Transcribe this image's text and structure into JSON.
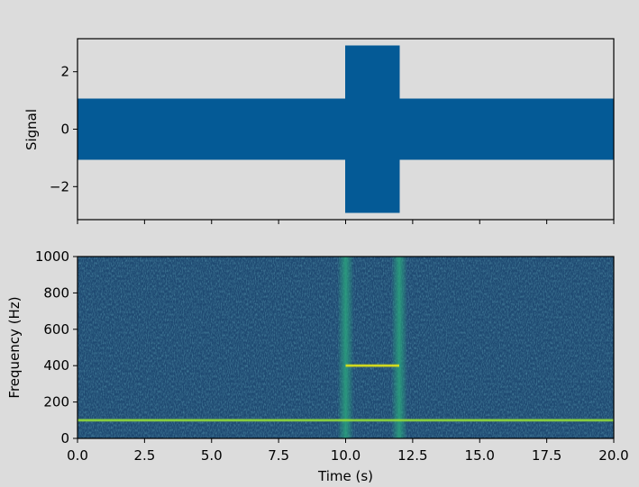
{
  "chart_data": [
    {
      "type": "area",
      "xlabel": "",
      "ylabel": "Signal",
      "xlim": [
        0,
        20
      ],
      "ylim": [
        -3.15,
        3.15
      ],
      "grid": false,
      "color": "#045a96",
      "x_ticks": [
        0,
        2.5,
        5,
        7.5,
        10,
        12.5,
        15,
        17.5,
        20
      ],
      "y_ticks": [
        2,
        0,
        -2
      ],
      "y_tick_labels": [
        "2",
        "0",
        "−2"
      ],
      "series": [
        {
          "envelope": [
            {
              "x": 0,
              "upper": 1.05,
              "lower": -1.05
            },
            {
              "x": 10,
              "upper": 1.05,
              "lower": -1.05
            },
            {
              "x": 10,
              "upper": 2.9,
              "lower": -2.9
            },
            {
              "x": 12,
              "upper": 2.9,
              "lower": -2.9
            },
            {
              "x": 12,
              "upper": 1.05,
              "lower": -1.05
            },
            {
              "x": 20,
              "upper": 1.05,
              "lower": -1.05
            }
          ]
        }
      ]
    },
    {
      "type": "heatmap",
      "xlabel": "Time (s)",
      "ylabel": "Frequency (Hz)",
      "xlim": [
        0,
        20
      ],
      "ylim": [
        0,
        1000
      ],
      "grid": false,
      "colormap": "viridis",
      "background_color": "#1f4a72",
      "x_ticks": [
        0,
        2.5,
        5,
        7.5,
        10,
        12.5,
        15,
        17.5,
        20
      ],
      "x_tick_labels": [
        "0.0",
        "2.5",
        "5.0",
        "7.5",
        "10.0",
        "12.5",
        "15.0",
        "17.5",
        "20.0"
      ],
      "y_ticks": [
        0,
        200,
        400,
        600,
        800,
        1000
      ],
      "y_tick_labels": [
        "0",
        "200",
        "400",
        "600",
        "800",
        "1000"
      ],
      "features": {
        "tones": [
          {
            "frequency": 100,
            "t_start": 0,
            "t_end": 20,
            "color": "#8fd83a"
          },
          {
            "frequency": 400,
            "t_start": 10,
            "t_end": 12,
            "color": "#dfe318"
          }
        ],
        "broadband_transients": [
          {
            "t": 10,
            "color": "#2aa37d"
          },
          {
            "t": 12,
            "color": "#2aa37d"
          }
        ]
      }
    }
  ]
}
